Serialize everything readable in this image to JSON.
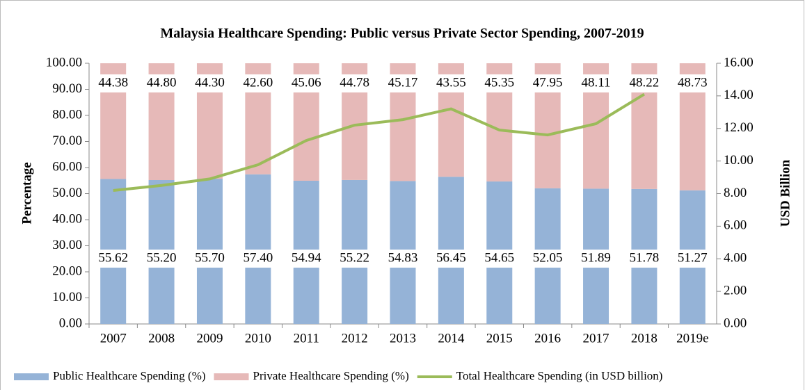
{
  "chart_data": {
    "type": "stacked_bar_line",
    "title": "Malaysia Healthcare Spending: Public versus Private Sector Spending, 2007-2019",
    "ylabel": "Percentage",
    "y2label": "USD Billion",
    "categories": [
      "2007",
      "2008",
      "2009",
      "2010",
      "2011",
      "2012",
      "2013",
      "2014",
      "2015",
      "2016",
      "2017",
      "2018",
      "2019e"
    ],
    "series": [
      {
        "name": "Public Healthcare Spending (%)",
        "color": "#95b3d7",
        "values": [
          55.62,
          55.2,
          55.7,
          57.4,
          54.94,
          55.22,
          54.83,
          56.45,
          54.65,
          52.05,
          51.89,
          51.78,
          51.27
        ],
        "value_labels": [
          "55.62",
          "55.20",
          "55.70",
          "57.40",
          "54.94",
          "55.22",
          "54.83",
          "56.45",
          "54.65",
          "52.05",
          "51.89",
          "51.78",
          "51.27"
        ]
      },
      {
        "name": "Private Healthcare Spending (%)",
        "color": "#e6b9b8",
        "values": [
          44.38,
          44.8,
          44.3,
          42.6,
          45.06,
          44.78,
          45.17,
          43.55,
          45.35,
          47.95,
          48.11,
          48.22,
          48.73
        ],
        "value_labels": [
          "44.38",
          "44.80",
          "44.30",
          "42.60",
          "45.06",
          "44.78",
          "45.17",
          "43.55",
          "45.35",
          "47.95",
          "48.11",
          "48.22",
          "48.73"
        ]
      },
      {
        "name": "Total Healthcare Spending (in USD billion)",
        "color": "#9bbb59",
        "axis": "y2",
        "values": [
          8.19,
          8.5,
          8.9,
          9.77,
          11.26,
          12.2,
          12.54,
          13.2,
          11.9,
          11.6,
          12.29,
          14.1,
          null
        ]
      }
    ],
    "ylim": [
      0,
      100
    ],
    "yticks": [
      {
        "value": 0,
        "label": "0.00"
      },
      {
        "value": 10,
        "label": "10.00"
      },
      {
        "value": 20,
        "label": "20.00"
      },
      {
        "value": 30,
        "label": "30.00"
      },
      {
        "value": 40,
        "label": "40.00"
      },
      {
        "value": 50,
        "label": "50.00"
      },
      {
        "value": 60,
        "label": "60.00"
      },
      {
        "value": 70,
        "label": "70.00"
      },
      {
        "value": 80,
        "label": "80.00"
      },
      {
        "value": 90,
        "label": "90.00"
      },
      {
        "value": 100,
        "label": "100.00"
      }
    ],
    "y2lim": [
      0,
      16
    ],
    "y2ticks": [
      {
        "value": 0,
        "label": "0.00"
      },
      {
        "value": 2,
        "label": "2.00"
      },
      {
        "value": 4,
        "label": "4.00"
      },
      {
        "value": 6,
        "label": "6.00"
      },
      {
        "value": 8,
        "label": "8.00"
      },
      {
        "value": 10,
        "label": "10.00"
      },
      {
        "value": 12,
        "label": "12.00"
      },
      {
        "value": 14,
        "label": "14.00"
      },
      {
        "value": 16,
        "label": "16.00"
      }
    ],
    "legend": "bottom"
  }
}
